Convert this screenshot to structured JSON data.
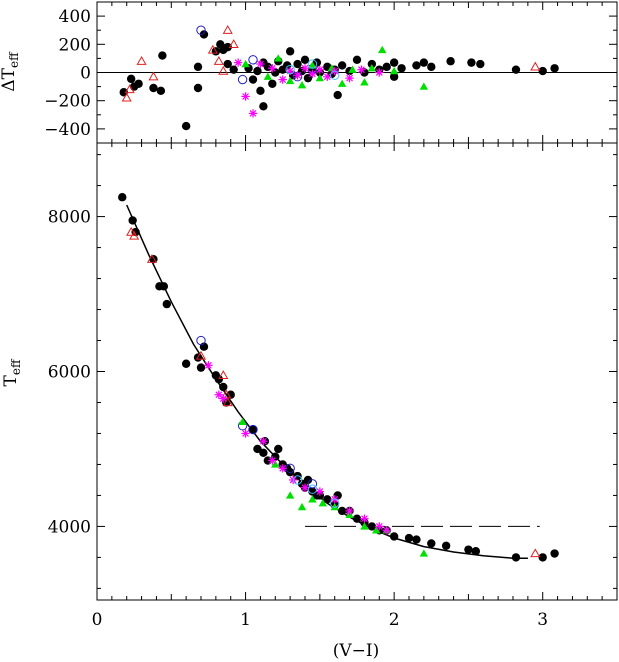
{
  "chart_data": [
    {
      "panel": "residuals",
      "type": "scatter",
      "ylabel": "ΔT_eff",
      "ylabel_main": "ΔT",
      "ylabel_sub": "eff",
      "xlim": [
        0,
        3.5
      ],
      "ylim": [
        -500,
        500
      ],
      "yticks": [
        -400,
        -200,
        0,
        200,
        400
      ],
      "zero_line": true,
      "series": [
        {
          "marker": "filled-circle",
          "color": "#000000",
          "points": [
            [
              0.18,
              -140
            ],
            [
              0.23,
              -45
            ],
            [
              0.25,
              -100
            ],
            [
              0.28,
              -80
            ],
            [
              0.38,
              -110
            ],
            [
              0.43,
              -130
            ],
            [
              0.44,
              120
            ],
            [
              0.6,
              -380
            ],
            [
              0.68,
              40
            ],
            [
              0.68,
              -110
            ],
            [
              0.72,
              270
            ],
            [
              0.8,
              150
            ],
            [
              0.83,
              200
            ],
            [
              0.85,
              160
            ],
            [
              0.88,
              180
            ],
            [
              0.88,
              60
            ],
            [
              0.92,
              20
            ],
            [
              1.02,
              30
            ],
            [
              1.05,
              -50
            ],
            [
              1.08,
              10
            ],
            [
              1.1,
              -130
            ],
            [
              1.12,
              -240
            ],
            [
              1.12,
              70
            ],
            [
              1.15,
              40
            ],
            [
              1.18,
              -80
            ],
            [
              1.2,
              0
            ],
            [
              1.22,
              80
            ],
            [
              1.25,
              20
            ],
            [
              1.28,
              50
            ],
            [
              1.3,
              150
            ],
            [
              1.32,
              -20
            ],
            [
              1.35,
              60
            ],
            [
              1.38,
              10
            ],
            [
              1.4,
              90
            ],
            [
              1.42,
              -40
            ],
            [
              1.45,
              30
            ],
            [
              1.48,
              70
            ],
            [
              1.5,
              0
            ],
            [
              1.55,
              40
            ],
            [
              1.58,
              -10
            ],
            [
              1.6,
              20
            ],
            [
              1.62,
              -160
            ],
            [
              1.65,
              50
            ],
            [
              1.7,
              10
            ],
            [
              1.75,
              90
            ],
            [
              1.8,
              0
            ],
            [
              1.85,
              60
            ],
            [
              1.9,
              20
            ],
            [
              1.95,
              40
            ],
            [
              2.0,
              -30
            ],
            [
              2.0,
              70
            ],
            [
              2.05,
              30
            ],
            [
              2.15,
              50
            ],
            [
              2.2,
              70
            ],
            [
              2.25,
              40
            ],
            [
              2.38,
              80
            ],
            [
              2.52,
              70
            ],
            [
              2.58,
              60
            ],
            [
              2.82,
              20
            ],
            [
              3.0,
              10
            ],
            [
              3.08,
              30
            ]
          ]
        },
        {
          "marker": "open-circle",
          "color": "#2020c0",
          "points": [
            [
              0.7,
              300
            ],
            [
              0.98,
              -50
            ],
            [
              1.05,
              90
            ],
            [
              1.35,
              -30
            ],
            [
              1.45,
              20
            ]
          ]
        },
        {
          "marker": "open-triangle",
          "color": "#e02020",
          "points": [
            [
              0.2,
              -180
            ],
            [
              0.22,
              -120
            ],
            [
              0.3,
              80
            ],
            [
              0.38,
              -30
            ],
            [
              0.78,
              160
            ],
            [
              0.82,
              80
            ],
            [
              0.85,
              10
            ],
            [
              0.88,
              300
            ],
            [
              0.92,
              200
            ],
            [
              2.95,
              40
            ]
          ]
        },
        {
          "marker": "filled-triangle",
          "color": "#00e000",
          "points": [
            [
              1.0,
              60
            ],
            [
              1.15,
              -30
            ],
            [
              1.22,
              100
            ],
            [
              1.3,
              -60
            ],
            [
              1.38,
              -90
            ],
            [
              1.45,
              50
            ],
            [
              1.5,
              -40
            ],
            [
              1.58,
              30
            ],
            [
              1.65,
              -80
            ],
            [
              1.72,
              20
            ],
            [
              1.8,
              -70
            ],
            [
              1.85,
              30
            ],
            [
              1.92,
              160
            ],
            [
              2.0,
              10
            ],
            [
              2.2,
              -100
            ]
          ]
        },
        {
          "marker": "asterisk",
          "color": "#ff00ff",
          "points": [
            [
              0.95,
              70
            ],
            [
              1.0,
              -170
            ],
            [
              1.05,
              -290
            ],
            [
              1.1,
              60
            ],
            [
              1.18,
              30
            ],
            [
              1.25,
              -50
            ],
            [
              1.3,
              10
            ],
            [
              1.35,
              -20
            ],
            [
              1.4,
              30
            ],
            [
              1.45,
              -10
            ],
            [
              1.5,
              20
            ],
            [
              1.55,
              -30
            ],
            [
              1.6,
              10
            ],
            [
              1.7,
              -40
            ],
            [
              1.78,
              20
            ],
            [
              1.9,
              0
            ]
          ]
        },
        {
          "marker": "open-circle",
          "color": "#40c0ff",
          "points": [
            [
              1.3,
              20
            ],
            [
              1.45,
              60
            ],
            [
              1.6,
              -20
            ]
          ]
        }
      ]
    },
    {
      "panel": "main",
      "type": "scatter",
      "xlabel": "(V−I)",
      "ylabel": "T_eff",
      "ylabel_main": "T",
      "ylabel_sub": "eff",
      "xlim": [
        0,
        3.5
      ],
      "ylim": [
        3050,
        8950
      ],
      "xticks": [
        0,
        1,
        2,
        3
      ],
      "yticks": [
        4000,
        6000,
        8000
      ],
      "fit_curve": [
        [
          0.2,
          8150
        ],
        [
          0.35,
          7500
        ],
        [
          0.5,
          6900
        ],
        [
          0.65,
          6350
        ],
        [
          0.8,
          5900
        ],
        [
          0.95,
          5480
        ],
        [
          1.1,
          5100
        ],
        [
          1.25,
          4800
        ],
        [
          1.4,
          4530
        ],
        [
          1.55,
          4300
        ],
        [
          1.7,
          4120
        ],
        [
          1.85,
          3970
        ],
        [
          2.0,
          3850
        ],
        [
          2.2,
          3740
        ],
        [
          2.4,
          3670
        ],
        [
          2.6,
          3620
        ],
        [
          2.8,
          3590
        ],
        [
          2.9,
          3590
        ]
      ],
      "dashed_line": {
        "x": [
          1.4,
          2.98
        ],
        "y": 4000
      },
      "series": [
        {
          "marker": "filled-circle",
          "color": "#000000",
          "points": [
            [
              0.17,
              8250
            ],
            [
              0.24,
              7950
            ],
            [
              0.26,
              7800
            ],
            [
              0.38,
              7450
            ],
            [
              0.42,
              7100
            ],
            [
              0.45,
              7100
            ],
            [
              0.47,
              6870
            ],
            [
              0.6,
              6100
            ],
            [
              0.68,
              6180
            ],
            [
              0.7,
              6050
            ],
            [
              0.72,
              6320
            ],
            [
              0.8,
              5950
            ],
            [
              0.82,
              5900
            ],
            [
              0.85,
              5800
            ],
            [
              0.87,
              5600
            ],
            [
              0.9,
              5700
            ],
            [
              1.05,
              5250
            ],
            [
              1.08,
              5000
            ],
            [
              1.12,
              4950
            ],
            [
              1.13,
              5100
            ],
            [
              1.15,
              4850
            ],
            [
              1.2,
              4900
            ],
            [
              1.22,
              5000
            ],
            [
              1.25,
              4800
            ],
            [
              1.28,
              4750
            ],
            [
              1.3,
              4700
            ],
            [
              1.35,
              4650
            ],
            [
              1.38,
              4550
            ],
            [
              1.4,
              4500
            ],
            [
              1.42,
              4600
            ],
            [
              1.45,
              4450
            ],
            [
              1.48,
              4400
            ],
            [
              1.5,
              4400
            ],
            [
              1.55,
              4350
            ],
            [
              1.6,
              4280
            ],
            [
              1.62,
              4400
            ],
            [
              1.65,
              4200
            ],
            [
              1.7,
              4200
            ],
            [
              1.75,
              4100
            ],
            [
              1.8,
              4050
            ],
            [
              1.85,
              4000
            ],
            [
              1.9,
              3950
            ],
            [
              1.95,
              3950
            ],
            [
              2.0,
              3870
            ],
            [
              2.1,
              3850
            ],
            [
              2.15,
              3830
            ],
            [
              2.25,
              3780
            ],
            [
              2.35,
              3750
            ],
            [
              2.5,
              3700
            ],
            [
              2.55,
              3680
            ],
            [
              2.82,
              3600
            ],
            [
              3.0,
              3600
            ],
            [
              3.08,
              3650
            ]
          ]
        },
        {
          "marker": "open-circle",
          "color": "#2020c0",
          "points": [
            [
              0.7,
              6400
            ],
            [
              0.98,
              5300
            ],
            [
              1.05,
              5250
            ],
            [
              1.3,
              4750
            ],
            [
              1.45,
              4550
            ]
          ]
        },
        {
          "marker": "open-triangle",
          "color": "#e02020",
          "points": [
            [
              0.23,
              7800
            ],
            [
              0.25,
              7750
            ],
            [
              0.37,
              7450
            ],
            [
              0.7,
              6200
            ],
            [
              0.85,
              5950
            ],
            [
              0.87,
              5700
            ],
            [
              0.88,
              5600
            ],
            [
              2.95,
              3650
            ]
          ]
        },
        {
          "marker": "filled-triangle",
          "color": "#00e000",
          "points": [
            [
              0.98,
              5350
            ],
            [
              1.2,
              4800
            ],
            [
              1.3,
              4400
            ],
            [
              1.38,
              4250
            ],
            [
              1.45,
              4350
            ],
            [
              1.52,
              4300
            ],
            [
              1.6,
              4250
            ],
            [
              1.7,
              4150
            ],
            [
              1.8,
              4000
            ],
            [
              1.88,
              3950
            ],
            [
              1.95,
              3950
            ],
            [
              2.2,
              3650
            ]
          ]
        },
        {
          "marker": "asterisk",
          "color": "#ff00ff",
          "points": [
            [
              0.75,
              6080
            ],
            [
              0.82,
              5700
            ],
            [
              0.85,
              5650
            ],
            [
              1.0,
              5200
            ],
            [
              1.12,
              5100
            ],
            [
              1.18,
              4850
            ],
            [
              1.25,
              4750
            ],
            [
              1.32,
              4600
            ],
            [
              1.4,
              4500
            ],
            [
              1.5,
              4450
            ],
            [
              1.6,
              4350
            ],
            [
              1.7,
              4200
            ],
            [
              1.8,
              4100
            ],
            [
              1.9,
              4000
            ],
            [
              1.95,
              3950
            ]
          ]
        },
        {
          "marker": "open-circle",
          "color": "#40c0ff",
          "points": [
            [
              1.35,
              4600
            ],
            [
              1.45,
              4480
            ],
            [
              1.6,
              4300
            ]
          ]
        }
      ]
    }
  ]
}
